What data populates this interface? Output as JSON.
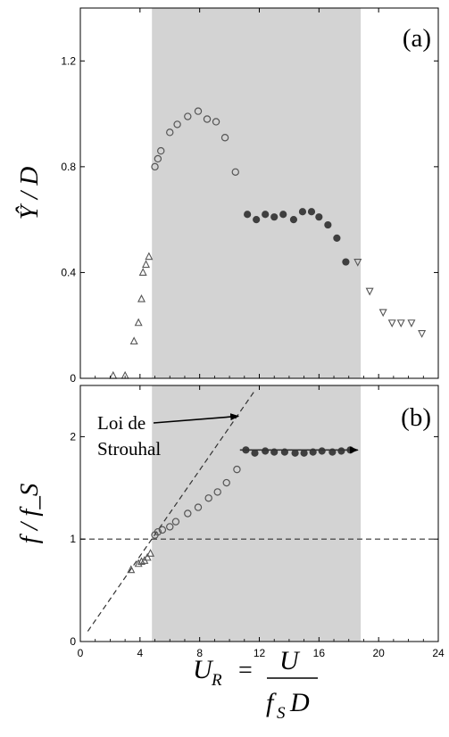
{
  "colors": {
    "shade": "#d3d3d3",
    "marker": "#555555",
    "filled_marker": "#3f3f3f",
    "axis": "#000000"
  },
  "chart_data": [
    {
      "type": "scatter",
      "panel_label": "(a)",
      "ylabel": "Ŷ / D",
      "xlim": [
        0,
        24
      ],
      "ylim": [
        0,
        1.4
      ],
      "x_ticks": [
        "0",
        "4",
        "8",
        "12",
        "16",
        "20",
        "24"
      ],
      "y_ticks": [
        {
          "value": 0,
          "label": "0"
        },
        {
          "value": 0.4,
          "label": "0.4"
        },
        {
          "value": 0.8,
          "label": "0.8"
        },
        {
          "value": 1.2,
          "label": "1.2"
        }
      ],
      "x_tick_labels_shown": false,
      "shaded_region": [
        4.8,
        18.8
      ],
      "grid": false,
      "series": [
        {
          "marker": "triangle-up-open",
          "x": [
            2.2,
            3.0,
            3.6,
            3.9,
            4.1,
            4.2,
            4.4,
            4.6
          ],
          "y": [
            0.01,
            0.01,
            0.14,
            0.21,
            0.3,
            0.4,
            0.43,
            0.46
          ]
        },
        {
          "marker": "circle-open",
          "x": [
            5.0,
            5.2,
            5.4,
            6.0,
            6.5,
            7.2,
            7.9,
            8.5,
            9.1,
            9.7,
            10.4
          ],
          "y": [
            0.8,
            0.83,
            0.86,
            0.93,
            0.96,
            0.99,
            1.01,
            0.98,
            0.97,
            0.91,
            0.78
          ]
        },
        {
          "marker": "circle-filled",
          "x": [
            11.2,
            11.8,
            12.4,
            13.0,
            13.6,
            14.3,
            14.9,
            15.5,
            16.0,
            16.6,
            17.2,
            17.8
          ],
          "y": [
            0.62,
            0.6,
            0.62,
            0.61,
            0.62,
            0.6,
            0.63,
            0.63,
            0.61,
            0.58,
            0.53,
            0.44
          ]
        },
        {
          "marker": "triangle-down-open",
          "x": [
            18.6,
            19.4,
            20.3,
            20.9,
            21.5,
            22.2,
            22.9
          ],
          "y": [
            0.44,
            0.33,
            0.25,
            0.21,
            0.21,
            0.21,
            0.17
          ]
        }
      ]
    },
    {
      "type": "scatter",
      "panel_label": "(b)",
      "ylabel": "f / f_S",
      "xlim": [
        0,
        24
      ],
      "ylim": [
        0,
        2.5
      ],
      "x_ticks": [
        "0",
        "4",
        "8",
        "12",
        "16",
        "20",
        "24"
      ],
      "y_ticks": [
        {
          "value": 0,
          "label": "0"
        },
        {
          "value": 1,
          "label": "1"
        },
        {
          "value": 2,
          "label": "2"
        }
      ],
      "shaded_region": [
        4.8,
        18.8
      ],
      "grid": false,
      "reference_lines": [
        {
          "kind": "dashed",
          "from": [
            0.5,
            0.1
          ],
          "to": [
            11.7,
            2.45
          ]
        },
        {
          "kind": "dashed",
          "from": [
            0,
            1.0
          ],
          "to": [
            24,
            1.0
          ]
        }
      ],
      "annotation": {
        "text_line1": "Loi de",
        "text_line2": "Strouhal",
        "arrow_to": [
          10.6,
          2.2
        ]
      },
      "arrow_on_series": {
        "from": [
          10.7,
          1.87
        ],
        "to": [
          18.6,
          1.87
        ]
      },
      "series": [
        {
          "marker": "triangle-up-open",
          "x": [
            3.4,
            3.9,
            4.1,
            4.3,
            4.5,
            4.7
          ],
          "y": [
            0.7,
            0.76,
            0.78,
            0.79,
            0.82,
            0.86
          ]
        },
        {
          "marker": "circle-open",
          "x": [
            5.0,
            5.2,
            5.5,
            6.0,
            6.4,
            7.2,
            7.9,
            8.6,
            9.2,
            9.8,
            10.5
          ],
          "y": [
            1.04,
            1.07,
            1.09,
            1.12,
            1.17,
            1.25,
            1.31,
            1.4,
            1.46,
            1.55,
            1.68
          ]
        },
        {
          "marker": "circle-filled",
          "x": [
            11.1,
            11.7,
            12.4,
            13.0,
            13.7,
            14.4,
            15.0,
            15.6,
            16.2,
            16.9,
            17.5,
            18.1
          ],
          "y": [
            1.87,
            1.84,
            1.86,
            1.85,
            1.85,
            1.84,
            1.84,
            1.85,
            1.86,
            1.85,
            1.86,
            1.87
          ]
        }
      ]
    }
  ],
  "xlabel": {
    "lhs": "U",
    "lhs_sub": "R",
    "eq": "=",
    "num": "U",
    "den_f": "f",
    "den_sub": "S",
    "den_D": "D"
  }
}
